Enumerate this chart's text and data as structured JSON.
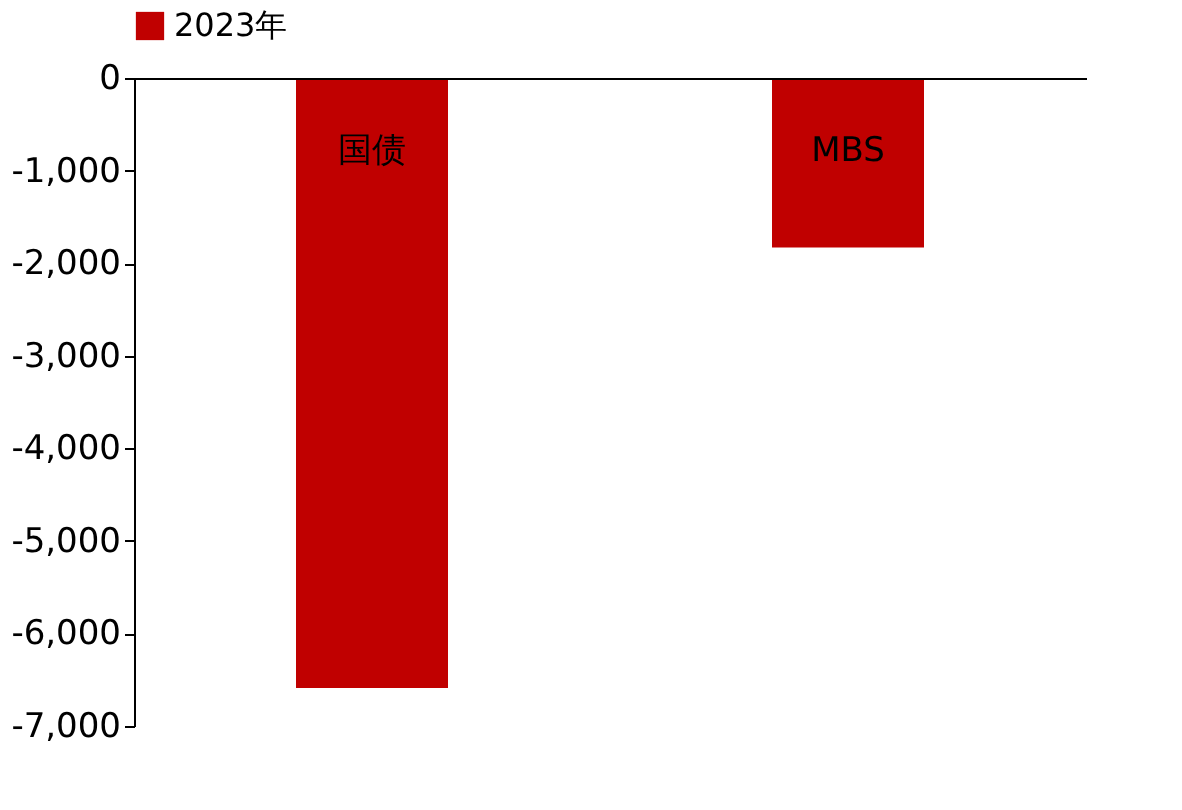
{
  "chart_data": {
    "type": "bar",
    "categories": [
      "国债",
      "MBS"
    ],
    "series": [
      {
        "name": "2023年",
        "color": "#c00000",
        "values": [
          -6590,
          -1830
        ]
      }
    ],
    "ylim": [
      -7000,
      0
    ],
    "yticks": [
      0,
      {
        "value": -1000,
        "label": "-1,000"
      },
      {
        "value": -2000,
        "label": "-2,000"
      },
      {
        "value": -3000,
        "label": "-3,000"
      },
      {
        "value": -4000,
        "label": "-4,000"
      },
      {
        "value": -5000,
        "label": "-5,000"
      },
      {
        "value": -6000,
        "label": "-6,000"
      },
      {
        "value": -7000,
        "label": "-7,000"
      }
    ],
    "grid": false,
    "legend": "top"
  }
}
